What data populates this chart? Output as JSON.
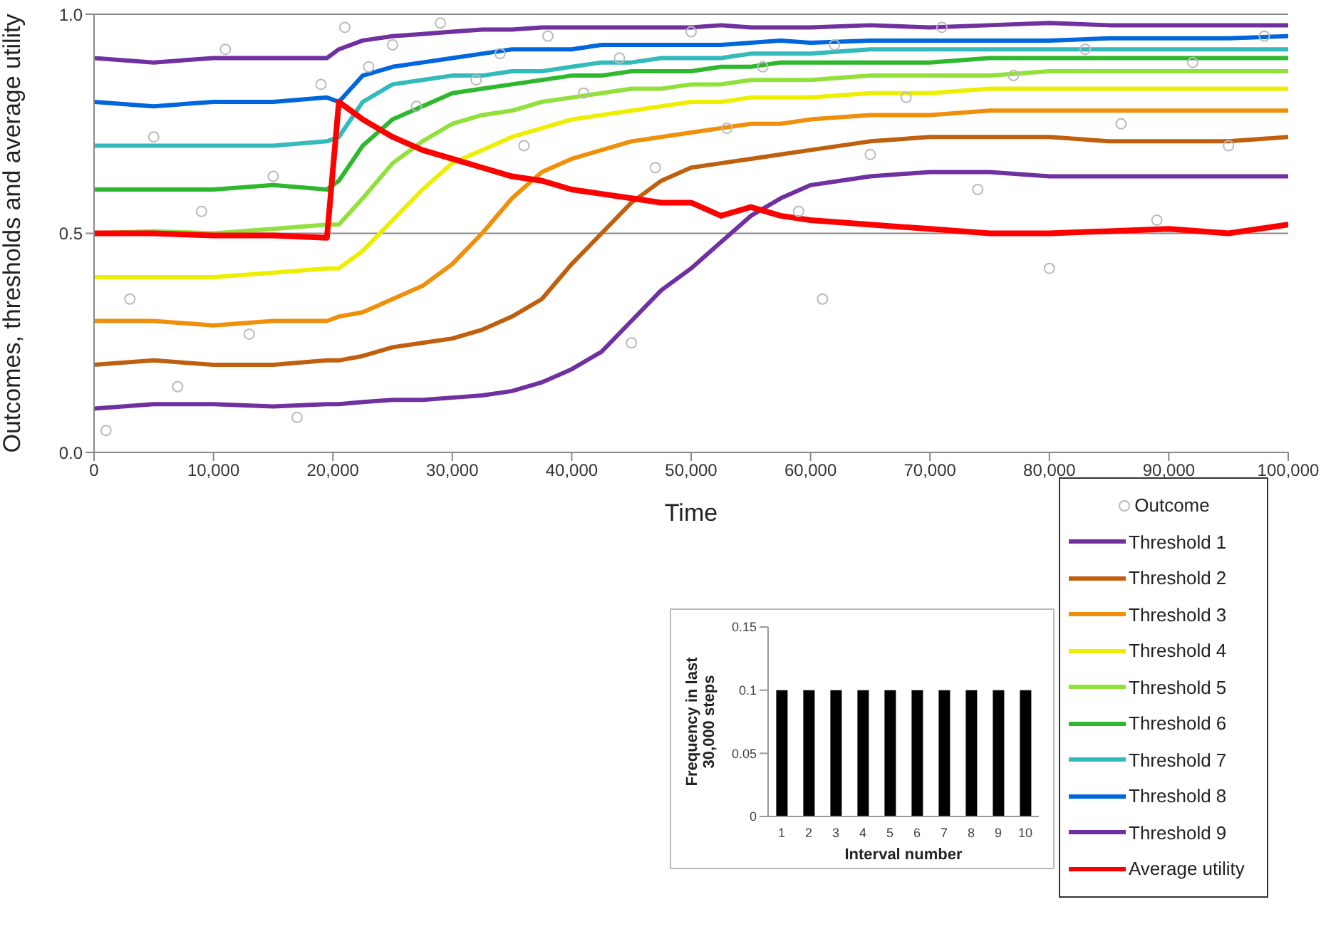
{
  "chart_data": [
    {
      "type": "line",
      "xlabel": "Time",
      "ylabel": "Outcomes, thresholds and average  utility",
      "xlim": [
        0,
        100000
      ],
      "ylim": [
        0,
        1
      ],
      "xticks": [
        0,
        {
          "value": 10000,
          "label": "10,000"
        },
        {
          "value": 20000,
          "label": "20,000"
        },
        {
          "value": 30000,
          "label": "30,000"
        },
        {
          "value": 40000,
          "label": "40,000"
        },
        {
          "value": 50000,
          "label": "50,000"
        },
        {
          "value": 60000,
          "label": "60,000"
        },
        {
          "value": 70000,
          "label": "70,000"
        },
        {
          "value": 80000,
          "label": "80,000"
        },
        {
          "value": 90000,
          "label": "90,000"
        },
        {
          "value": 100000,
          "label": "100,000"
        }
      ],
      "yticks": [
        {
          "value": 0,
          "label": "0.0"
        },
        {
          "value": 0.5,
          "label": "0.5"
        },
        {
          "value": 1,
          "label": "1.0"
        }
      ],
      "grid": "y",
      "legend": "bottom right",
      "marker": "none",
      "line_style": "solid",
      "x": [
        0,
        5000,
        10000,
        15000,
        19500,
        20500,
        22500,
        25000,
        27500,
        30000,
        32500,
        35000,
        37500,
        40000,
        42500,
        45000,
        47500,
        50000,
        52500,
        55000,
        57500,
        60000,
        65000,
        70000,
        75000,
        80000,
        85000,
        90000,
        95000,
        100000
      ],
      "series": [
        {
          "name": "Outcome",
          "type": "scatter",
          "marker": "circle",
          "color": "#bbbbbb",
          "x": [
            1000,
            3000,
            5000,
            7000,
            9000,
            11000,
            13000,
            15000,
            17000,
            19000,
            21000,
            23000,
            25000,
            27000,
            29000,
            32000,
            34000,
            36000,
            38000,
            41000,
            44000,
            47000,
            50000,
            53000,
            56000,
            59000,
            62000,
            65000,
            68000,
            71000,
            74000,
            77000,
            80000,
            83000,
            86000,
            89000,
            92000,
            95000,
            98000,
            61000,
            45000
          ],
          "values": [
            0.05,
            0.35,
            0.72,
            0.15,
            0.55,
            0.92,
            0.27,
            0.63,
            0.08,
            0.84,
            0.97,
            0.88,
            0.93,
            0.79,
            0.98,
            0.85,
            0.91,
            0.7,
            0.95,
            0.82,
            0.9,
            0.65,
            0.96,
            0.74,
            0.88,
            0.55,
            0.93,
            0.68,
            0.81,
            0.97,
            0.6,
            0.86,
            0.42,
            0.92,
            0.75,
            0.53,
            0.89,
            0.7,
            0.95,
            0.35,
            0.25
          ]
        },
        {
          "name": "Threshold 1",
          "color": "#7030a0",
          "values": [
            0.1,
            0.11,
            0.11,
            0.105,
            0.11,
            0.11,
            0.115,
            0.12,
            0.12,
            0.125,
            0.13,
            0.14,
            0.16,
            0.19,
            0.23,
            0.3,
            0.37,
            0.42,
            0.48,
            0.54,
            0.58,
            0.61,
            0.63,
            0.64,
            0.64,
            0.63,
            0.63,
            0.63,
            0.63,
            0.63
          ]
        },
        {
          "name": "Threshold 2",
          "color": "#c0600f",
          "values": [
            0.2,
            0.21,
            0.2,
            0.2,
            0.21,
            0.21,
            0.22,
            0.24,
            0.25,
            0.26,
            0.28,
            0.31,
            0.35,
            0.43,
            0.5,
            0.57,
            0.62,
            0.65,
            0.66,
            0.67,
            0.68,
            0.69,
            0.71,
            0.72,
            0.72,
            0.72,
            0.71,
            0.71,
            0.71,
            0.72
          ]
        },
        {
          "name": "Threshold 3",
          "color": "#f0900a",
          "values": [
            0.3,
            0.3,
            0.29,
            0.3,
            0.3,
            0.31,
            0.32,
            0.35,
            0.38,
            0.43,
            0.5,
            0.58,
            0.64,
            0.67,
            0.69,
            0.71,
            0.72,
            0.73,
            0.74,
            0.75,
            0.75,
            0.76,
            0.77,
            0.77,
            0.78,
            0.78,
            0.78,
            0.78,
            0.78,
            0.78
          ]
        },
        {
          "name": "Threshold 4",
          "color": "#eeee00",
          "values": [
            0.4,
            0.4,
            0.4,
            0.41,
            0.42,
            0.42,
            0.46,
            0.53,
            0.6,
            0.66,
            0.69,
            0.72,
            0.74,
            0.76,
            0.77,
            0.78,
            0.79,
            0.8,
            0.8,
            0.81,
            0.81,
            0.81,
            0.82,
            0.82,
            0.83,
            0.83,
            0.83,
            0.83,
            0.83,
            0.83
          ]
        },
        {
          "name": "Threshold 5",
          "color": "#92e03c",
          "values": [
            0.5,
            0.505,
            0.5,
            0.51,
            0.52,
            0.52,
            0.58,
            0.66,
            0.71,
            0.75,
            0.77,
            0.78,
            0.8,
            0.81,
            0.82,
            0.83,
            0.83,
            0.84,
            0.84,
            0.85,
            0.85,
            0.85,
            0.86,
            0.86,
            0.86,
            0.87,
            0.87,
            0.87,
            0.87,
            0.87
          ]
        },
        {
          "name": "Threshold 6",
          "color": "#2eb82e",
          "values": [
            0.6,
            0.6,
            0.6,
            0.61,
            0.6,
            0.62,
            0.7,
            0.76,
            0.79,
            0.82,
            0.83,
            0.84,
            0.85,
            0.86,
            0.86,
            0.87,
            0.87,
            0.87,
            0.88,
            0.88,
            0.89,
            0.89,
            0.89,
            0.89,
            0.9,
            0.9,
            0.9,
            0.9,
            0.9,
            0.9
          ]
        },
        {
          "name": "Threshold 7",
          "color": "#33bbbb",
          "values": [
            0.7,
            0.7,
            0.7,
            0.7,
            0.71,
            0.72,
            0.8,
            0.84,
            0.85,
            0.86,
            0.86,
            0.87,
            0.87,
            0.88,
            0.89,
            0.89,
            0.9,
            0.9,
            0.9,
            0.91,
            0.91,
            0.91,
            0.92,
            0.92,
            0.92,
            0.92,
            0.92,
            0.92,
            0.92,
            0.92
          ]
        },
        {
          "name": "Threshold 8",
          "color": "#0066dd",
          "values": [
            0.8,
            0.79,
            0.8,
            0.8,
            0.81,
            0.8,
            0.86,
            0.88,
            0.89,
            0.9,
            0.91,
            0.92,
            0.92,
            0.92,
            0.93,
            0.93,
            0.93,
            0.93,
            0.93,
            0.935,
            0.94,
            0.935,
            0.94,
            0.94,
            0.94,
            0.94,
            0.945,
            0.945,
            0.945,
            0.95
          ]
        },
        {
          "name": "Threshold 9",
          "color": "#7030a0",
          "values": [
            0.9,
            0.89,
            0.9,
            0.9,
            0.9,
            0.92,
            0.94,
            0.95,
            0.955,
            0.96,
            0.965,
            0.965,
            0.97,
            0.97,
            0.97,
            0.97,
            0.97,
            0.97,
            0.975,
            0.97,
            0.97,
            0.97,
            0.975,
            0.97,
            0.975,
            0.98,
            0.975,
            0.975,
            0.975,
            0.975
          ]
        },
        {
          "name": "Average utility",
          "color": "#ff0000",
          "values": [
            0.5,
            0.5,
            0.495,
            0.495,
            0.49,
            0.8,
            0.76,
            0.72,
            0.69,
            0.67,
            0.65,
            0.63,
            0.62,
            0.6,
            0.59,
            0.58,
            0.57,
            0.57,
            0.54,
            0.56,
            0.54,
            0.53,
            0.52,
            0.51,
            0.5,
            0.5,
            0.505,
            0.51,
            0.5,
            0.52
          ]
        }
      ]
    },
    {
      "type": "bar",
      "xlabel": "Interval number",
      "ylabel": "Frequency in last\n30,000 steps",
      "categories": [
        "1",
        "2",
        "3",
        "4",
        "5",
        "6",
        "7",
        "8",
        "9",
        "10"
      ],
      "values": [
        0.1,
        0.1,
        0.1,
        0.1,
        0.1,
        0.1,
        0.1,
        0.1,
        0.1,
        0.1
      ],
      "color": "#000000",
      "ylim": [
        0,
        0.15
      ],
      "yticks": [
        0,
        0.05,
        0.1,
        0.15
      ]
    }
  ]
}
